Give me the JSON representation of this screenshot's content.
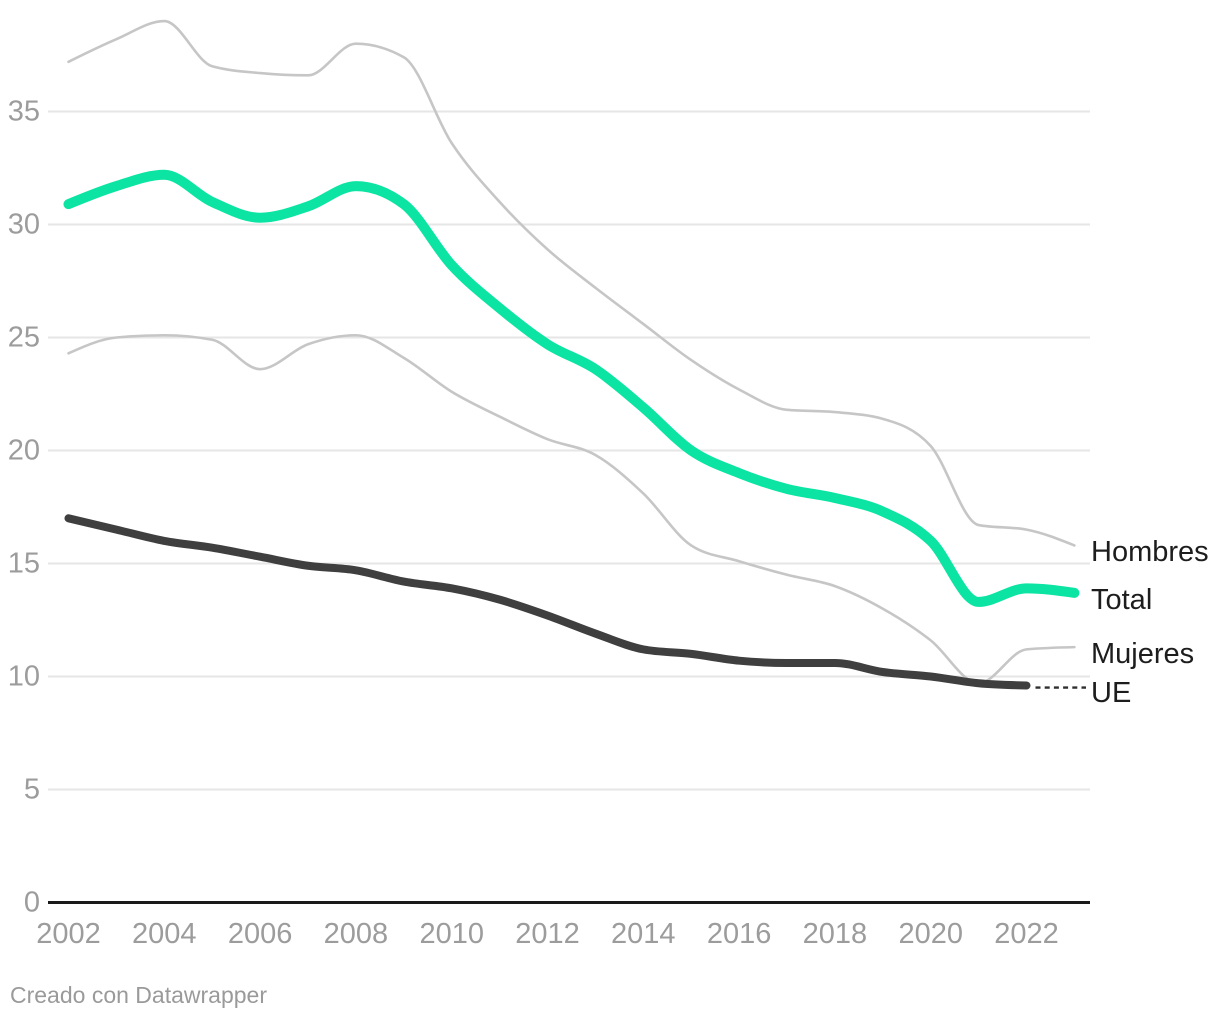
{
  "chart_data": {
    "type": "line",
    "x": [
      2002,
      2003,
      2004,
      2005,
      2006,
      2007,
      2008,
      2009,
      2010,
      2011,
      2012,
      2013,
      2014,
      2015,
      2016,
      2017,
      2018,
      2019,
      2020,
      2021,
      2022,
      2023
    ],
    "series": [
      {
        "name": "Hombres",
        "color": "#c6c6c6",
        "width": 2.6,
        "values": [
          37.2,
          38.2,
          39.0,
          37.0,
          36.7,
          36.6,
          38.0,
          37.4,
          33.6,
          31.0,
          28.9,
          27.2,
          25.6,
          24.0,
          22.7,
          21.8,
          21.7,
          21.4,
          20.2,
          16.7,
          16.5,
          15.8
        ]
      },
      {
        "name": "Total",
        "color": "#0be4a3",
        "width": 10,
        "values": [
          30.9,
          31.7,
          32.2,
          31.0,
          30.3,
          30.8,
          31.7,
          30.9,
          28.2,
          26.3,
          24.7,
          23.6,
          21.9,
          20.0,
          19.0,
          18.3,
          17.9,
          17.3,
          16.0,
          13.3,
          13.9,
          13.7
        ]
      },
      {
        "name": "Mujeres",
        "color": "#c6c6c6",
        "width": 2.6,
        "values": [
          24.3,
          25.0,
          25.1,
          24.9,
          23.6,
          24.7,
          25.1,
          24.1,
          22.6,
          21.5,
          20.5,
          19.8,
          18.1,
          15.8,
          15.1,
          14.5,
          14.0,
          13.0,
          11.6,
          9.7,
          11.2,
          11.3
        ]
      },
      {
        "name": "UE",
        "color": "#3f3f3f",
        "width": 8,
        "values": [
          17.0,
          16.5,
          16.0,
          15.7,
          15.3,
          14.9,
          14.7,
          14.2,
          13.9,
          13.4,
          12.7,
          11.9,
          11.2,
          11.0,
          10.7,
          10.6,
          10.6,
          10.2,
          10.0,
          9.7,
          9.6
        ],
        "dashed_connector_to_label": true
      }
    ],
    "yticks": [
      0,
      5,
      10,
      15,
      20,
      25,
      30,
      35
    ],
    "xticks": [
      2002,
      2004,
      2006,
      2008,
      2010,
      2012,
      2014,
      2016,
      2018,
      2020,
      2022
    ],
    "ylim": [
      0,
      39.5
    ],
    "grid": true,
    "legend_position": "right-edge-labels"
  },
  "colors": {
    "grid": "#e6e6e6",
    "axis": "#1a1a1a",
    "tick_text": "#9c9c9c",
    "legend_text": "#1d1d1d",
    "connector": "#2f2f2f",
    "accent_green": "#0be4a3"
  },
  "footer": {
    "attribution": "Creado con Datawrapper"
  }
}
